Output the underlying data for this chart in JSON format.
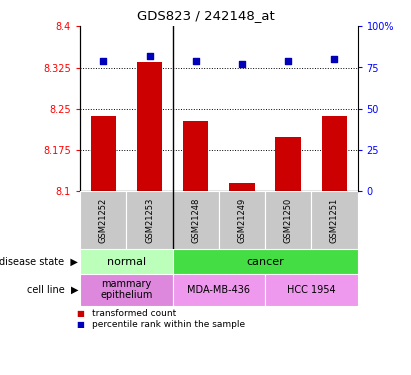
{
  "title": "GDS823 / 242148_at",
  "samples": [
    "GSM21252",
    "GSM21253",
    "GSM21248",
    "GSM21249",
    "GSM21250",
    "GSM21251"
  ],
  "bar_values": [
    8.237,
    8.335,
    8.228,
    8.115,
    8.198,
    8.237
  ],
  "percentile_values": [
    79,
    82,
    79,
    77,
    79,
    80
  ],
  "ylim_left": [
    8.1,
    8.4
  ],
  "ylim_right": [
    0,
    100
  ],
  "yticks_left": [
    8.1,
    8.175,
    8.25,
    8.325,
    8.4
  ],
  "yticks_right": [
    0,
    25,
    50,
    75,
    100
  ],
  "ytick_labels_left": [
    "8.1",
    "8.175",
    "8.25",
    "8.325",
    "8.4"
  ],
  "ytick_labels_right": [
    "0",
    "25",
    "50",
    "75",
    "100%"
  ],
  "bar_color": "#cc0000",
  "dot_color": "#0000bb",
  "disease_state_groups": [
    {
      "label": "normal",
      "cols": [
        0,
        1
      ],
      "color": "#bbffbb"
    },
    {
      "label": "cancer",
      "cols": [
        2,
        3,
        4,
        5
      ],
      "color": "#44dd44"
    }
  ],
  "cell_line_groups": [
    {
      "label": "mammary\nepithelium",
      "cols": [
        0,
        1
      ],
      "color": "#dd88dd"
    },
    {
      "label": "MDA-MB-436",
      "cols": [
        2,
        3
      ],
      "color": "#ee99ee"
    },
    {
      "label": "HCC 1954",
      "cols": [
        4,
        5
      ],
      "color": "#ee99ee"
    }
  ],
  "legend_items": [
    {
      "label": "transformed count",
      "color": "#cc0000"
    },
    {
      "label": "percentile rank within the sample",
      "color": "#0000bb"
    }
  ]
}
